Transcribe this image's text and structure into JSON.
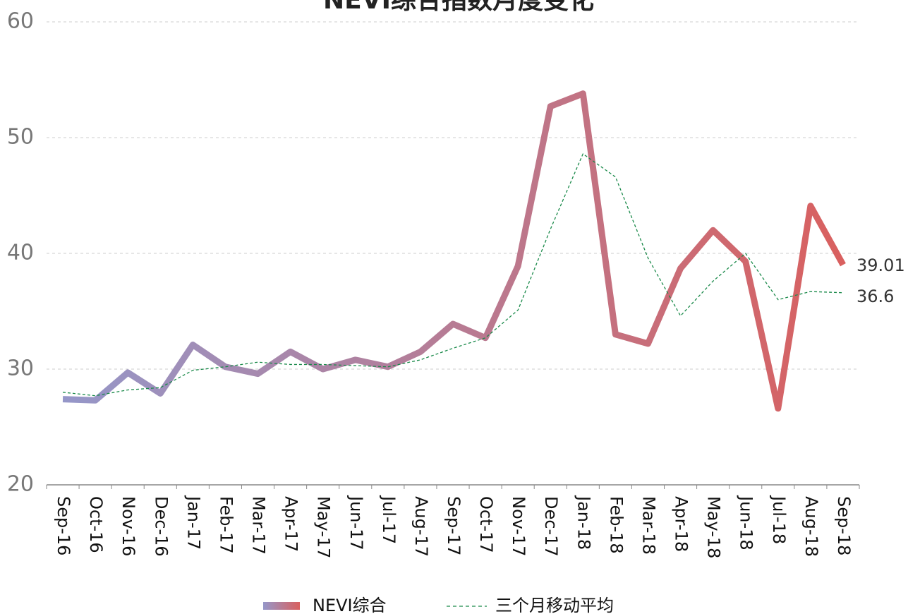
{
  "chart_data": {
    "type": "line",
    "title": "NEVI综合指数月度变化",
    "categories": [
      "Sep-16",
      "Oct-16",
      "Nov-16",
      "Dec-16",
      "Jan-17",
      "Feb-17",
      "Mar-17",
      "Apr-17",
      "May-17",
      "Jun-17",
      "Jul-17",
      "Aug-17",
      "Sep-17",
      "Oct-17",
      "Nov-17",
      "Dec-17",
      "Jan-18",
      "Feb-18",
      "Mar-18",
      "Apr-18",
      "May-18",
      "Jun-18",
      "Jul-18",
      "Aug-18",
      "Sep-18"
    ],
    "series": [
      {
        "name": "NEVI综合",
        "color": "#d9605f",
        "gradient_start": "#9597c9",
        "style": "solid",
        "values": [
          27.4,
          27.3,
          29.7,
          27.9,
          32.1,
          30.2,
          29.6,
          31.5,
          30.0,
          30.8,
          30.2,
          31.5,
          33.9,
          32.7,
          38.9,
          52.7,
          53.8,
          33.0,
          32.2,
          38.7,
          42.0,
          39.3,
          26.6,
          44.1,
          39.01
        ]
      },
      {
        "name": "三个月移动平均",
        "color": "#1a8a4a",
        "style": "dashed",
        "values": [
          28.0,
          27.7,
          28.2,
          28.4,
          29.9,
          30.2,
          30.6,
          30.4,
          30.4,
          30.3,
          30.2,
          30.8,
          31.8,
          32.7,
          35.1,
          42.1,
          48.6,
          46.6,
          39.6,
          34.6,
          37.6,
          40.0,
          36.0,
          36.7,
          36.6
        ]
      }
    ],
    "ylim": [
      20,
      60
    ],
    "yticks": [
      20,
      30,
      40,
      50,
      60
    ],
    "grid": true,
    "legend": "bottom"
  }
}
